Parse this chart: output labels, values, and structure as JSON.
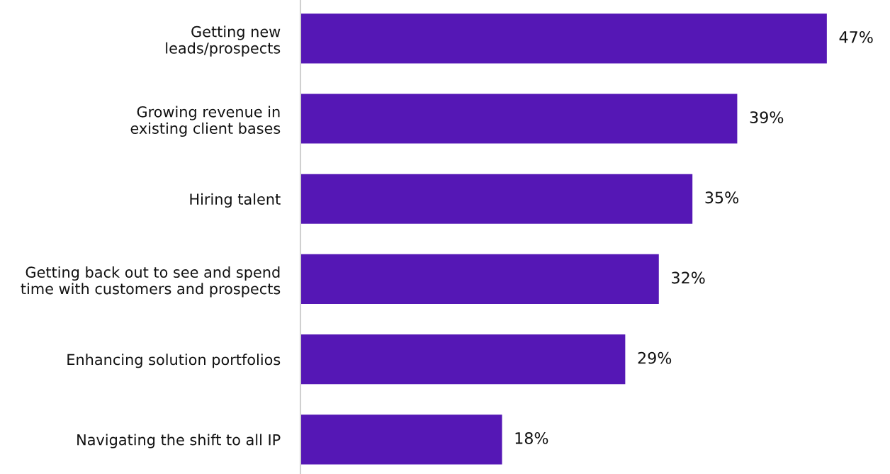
{
  "chart_data": {
    "type": "bar",
    "orientation": "horizontal",
    "categories": [
      "Getting new\nleads/prospects",
      "Growing revenue in\nexisting client bases",
      "Hiring talent",
      "Getting back out to see and spend\ntime with customers and prospects",
      "Enhancing solution portfolios",
      "Navigating the shift to all IP"
    ],
    "values": [
      47,
      39,
      35,
      32,
      29,
      18
    ],
    "value_labels": [
      "47%",
      "39%",
      "35%",
      "32%",
      "29%",
      "18%"
    ],
    "color": "#5517b5",
    "grid": false,
    "legend": false
  }
}
